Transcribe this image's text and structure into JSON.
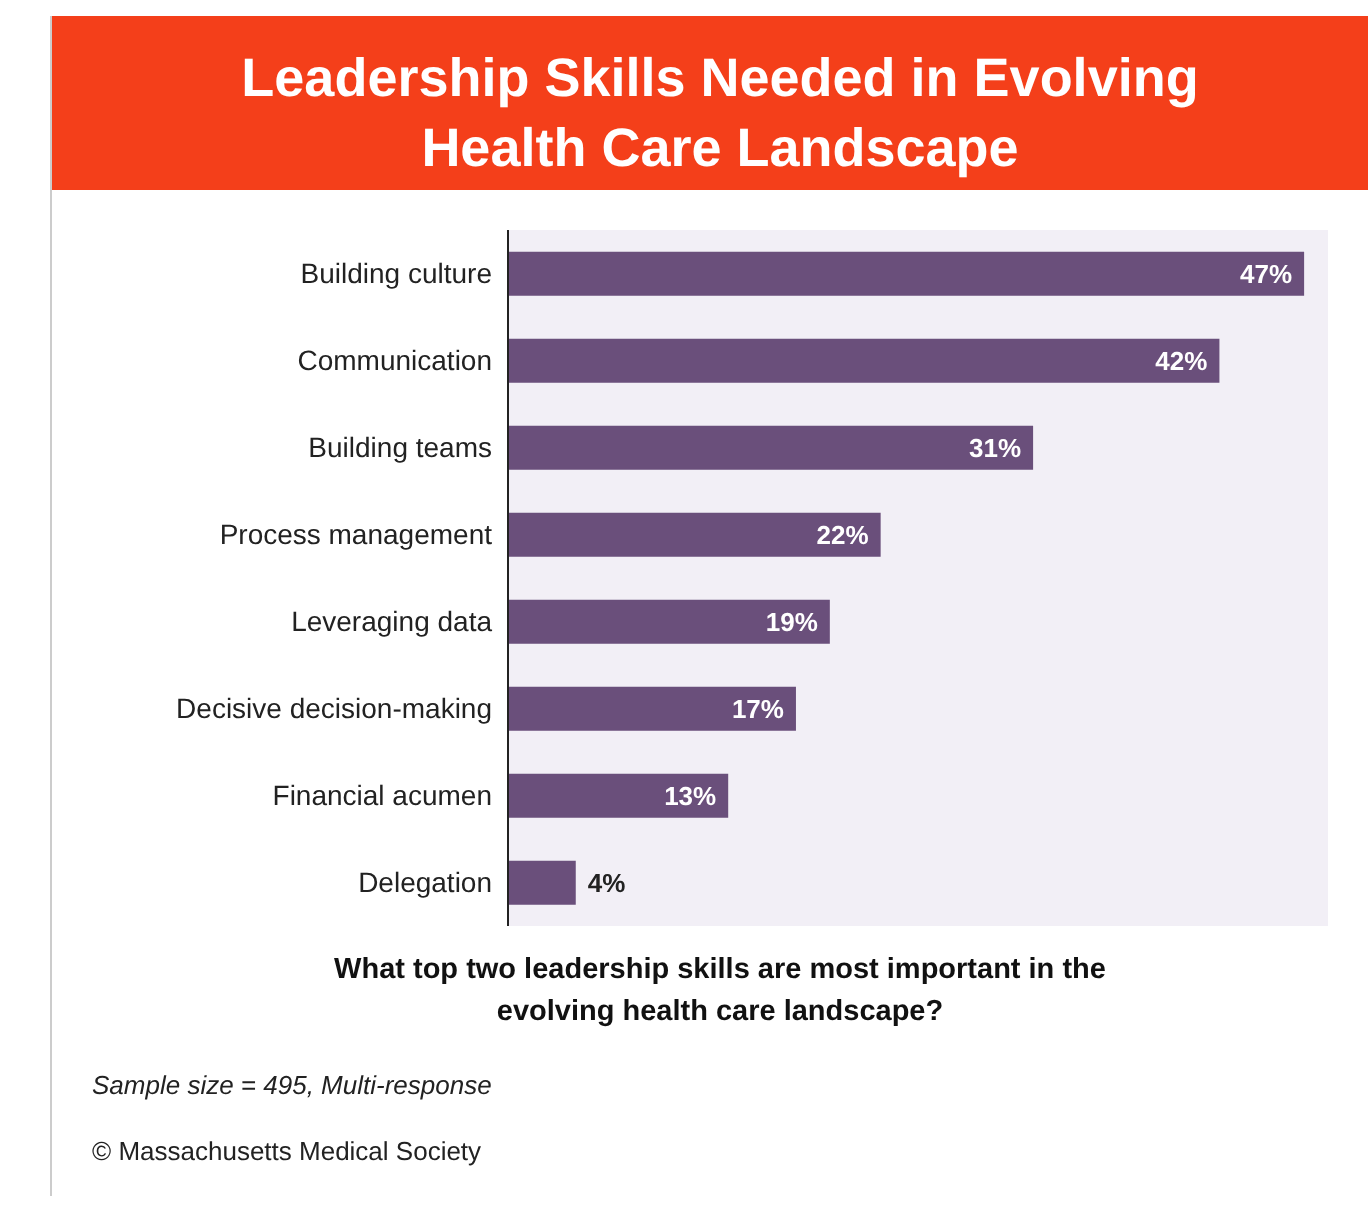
{
  "chart_data": {
    "type": "bar",
    "orientation": "horizontal",
    "title": "Leadership Skills Needed in Evolving Health Care Landscape",
    "categories": [
      "Building culture",
      "Communication",
      "Building teams",
      "Process management",
      "Leveraging data",
      "Decisive decision-making",
      "Financial acumen",
      "Delegation"
    ],
    "values": [
      47,
      42,
      31,
      22,
      19,
      17,
      13,
      4
    ],
    "value_labels": [
      "47%",
      "42%",
      "31%",
      "22%",
      "19%",
      "17%",
      "13%",
      "4%"
    ],
    "color": "#6a4f7b",
    "xlabel": "What top two leadership skills are most important in the evolving health care landscape?",
    "annotations": [
      "Sample size = 495, Multi-response",
      "© Massachusetts Medical Society"
    ]
  }
}
